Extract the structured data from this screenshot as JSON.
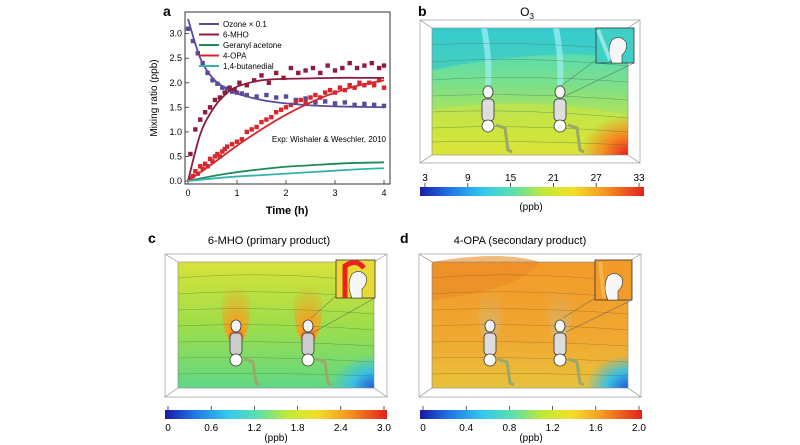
{
  "panel_a": {
    "letter": "a",
    "xlabel": "Time (h)",
    "ylabel": "Mixing ratio (ppb)",
    "annotation": "Exp: Wishaler & Weschler, 2010",
    "legend": [
      {
        "label": "Ozone × 0.1",
        "color": "#5b4a9a"
      },
      {
        "label": "6-MHO",
        "color": "#8c1d3c"
      },
      {
        "label": "Geranyl acetone",
        "color": "#1f8a5a"
      },
      {
        "label": "4-OPA",
        "color": "#d8262c"
      },
      {
        "label": "1,4-butanedial",
        "color": "#36b3b0"
      }
    ]
  },
  "panel_b": {
    "letter": "b",
    "title": "O3",
    "title_main": "O",
    "title_sub": "3",
    "unit": "(ppb)",
    "ticks": [
      "3",
      "9",
      "15",
      "21",
      "27",
      "33"
    ]
  },
  "panel_c": {
    "letter": "c",
    "title": "6-MHO (primary product)",
    "unit": "(ppb)",
    "ticks": [
      "0",
      "0.6",
      "1.2",
      "1.8",
      "2.4",
      "3.0"
    ]
  },
  "panel_d": {
    "letter": "d",
    "title": "4-OPA (secondary product)",
    "unit": "(ppb)",
    "ticks": [
      "0",
      "0.4",
      "0.8",
      "1.2",
      "1.6",
      "2.0"
    ]
  },
  "chart_data": [
    {
      "type": "line",
      "xlabel": "Time (h)",
      "ylabel": "Mixing ratio (ppb)",
      "xlim": [
        0,
        4
      ],
      "ylim": [
        0,
        3.4
      ],
      "xticks": [
        "0",
        "1",
        "2",
        "3",
        "4"
      ],
      "yticks": [
        "0.0",
        "0.5",
        "1.0",
        "1.5",
        "2.0",
        "2.5",
        "3.0"
      ],
      "legend_position": "top-left",
      "series": [
        {
          "name": "Ozone × 0.1",
          "color": "#5b4a9a",
          "x": [
            0,
            0.25,
            0.5,
            0.75,
            1.0,
            1.5,
            2.0,
            2.5,
            3.0,
            3.5,
            4.0
          ],
          "y": [
            3.3,
            2.5,
            2.1,
            1.9,
            1.78,
            1.65,
            1.58,
            1.54,
            1.52,
            1.51,
            1.5
          ]
        },
        {
          "name": "6-MHO",
          "color": "#8c1d3c",
          "x": [
            0,
            0.25,
            0.5,
            0.75,
            1.0,
            1.5,
            2.0,
            2.5,
            3.0,
            3.5,
            4.0
          ],
          "y": [
            0,
            0.95,
            1.45,
            1.75,
            1.92,
            2.05,
            2.08,
            2.09,
            2.1,
            2.1,
            2.1
          ]
        },
        {
          "name": "Geranyl acetone",
          "color": "#1f8a5a",
          "x": [
            0,
            0.5,
            1.0,
            1.5,
            2.0,
            2.5,
            3.0,
            3.5,
            4.0
          ],
          "y": [
            0,
            0.1,
            0.18,
            0.24,
            0.29,
            0.32,
            0.35,
            0.37,
            0.38
          ]
        },
        {
          "name": "4-OPA",
          "color": "#d8262c",
          "x": [
            0,
            0.5,
            1.0,
            1.5,
            2.0,
            2.5,
            3.0,
            3.5,
            4.0
          ],
          "y": [
            0,
            0.35,
            0.72,
            1.05,
            1.35,
            1.6,
            1.8,
            1.95,
            2.05
          ]
        },
        {
          "name": "1,4-butanedial",
          "color": "#36b3b0",
          "x": [
            0,
            0.5,
            1.0,
            1.5,
            2.0,
            2.5,
            3.0,
            3.5,
            4.0
          ],
          "y": [
            0,
            0.05,
            0.09,
            0.12,
            0.15,
            0.18,
            0.21,
            0.24,
            0.26
          ]
        }
      ],
      "markers": [
        {
          "name": "Ozone × 0.1",
          "color": "#5b4a9a",
          "x": [
            0.0,
            0.1,
            0.2,
            0.3,
            0.4,
            0.5,
            0.6,
            0.7,
            0.8,
            0.9,
            1.0,
            1.1,
            1.2,
            1.4,
            1.6,
            1.8,
            2.0,
            2.2,
            2.4,
            2.6,
            2.8,
            3.0,
            3.2,
            3.4,
            3.6,
            3.8,
            4.0
          ],
          "y": [
            3.1,
            2.85,
            2.6,
            2.4,
            2.2,
            2.05,
            1.98,
            1.9,
            1.88,
            1.82,
            1.8,
            1.78,
            1.75,
            1.72,
            1.75,
            1.7,
            1.72,
            1.65,
            1.68,
            1.6,
            1.62,
            1.58,
            1.6,
            1.55,
            1.57,
            1.55,
            1.53
          ]
        },
        {
          "name": "6-MHO",
          "color": "#8c1d3c",
          "x": [
            0.05,
            0.15,
            0.25,
            0.35,
            0.45,
            0.55,
            0.65,
            0.75,
            0.85,
            0.95,
            1.05,
            1.2,
            1.35,
            1.5,
            1.65,
            1.8,
            1.95,
            2.1,
            2.25,
            2.4,
            2.55,
            2.7,
            2.85,
            3.0,
            3.15,
            3.3,
            3.45,
            3.6,
            3.75,
            3.9,
            4.0
          ],
          "y": [
            0.55,
            1.05,
            1.25,
            1.4,
            1.5,
            1.65,
            1.7,
            1.8,
            1.9,
            1.85,
            2.0,
            1.95,
            2.05,
            2.15,
            2.0,
            2.2,
            2.1,
            2.3,
            2.2,
            2.25,
            2.3,
            2.2,
            2.35,
            2.25,
            2.3,
            2.4,
            2.3,
            2.35,
            2.4,
            2.3,
            2.35
          ]
        },
        {
          "name": "4-OPA",
          "color": "#d8262c",
          "x": [
            0.05,
            0.1,
            0.15,
            0.2,
            0.25,
            0.3,
            0.35,
            0.4,
            0.45,
            0.5,
            0.55,
            0.6,
            0.65,
            0.7,
            0.75,
            0.8,
            0.9,
            1.0,
            1.1,
            1.2,
            1.3,
            1.4,
            1.5,
            1.6,
            1.7,
            1.8,
            1.9,
            2.0,
            2.1,
            2.2,
            2.3,
            2.4,
            2.5,
            2.6,
            2.7,
            2.8,
            2.9,
            3.0,
            3.1,
            3.2,
            3.3,
            3.4,
            3.5,
            3.6,
            3.7,
            3.8,
            3.9,
            4.0
          ],
          "y": [
            0.05,
            0.1,
            0.2,
            0.15,
            0.3,
            0.25,
            0.35,
            0.3,
            0.45,
            0.4,
            0.5,
            0.55,
            0.5,
            0.6,
            0.65,
            0.7,
            0.75,
            0.8,
            0.85,
            1.0,
            1.05,
            1.1,
            1.2,
            1.25,
            1.3,
            1.4,
            1.45,
            1.5,
            1.55,
            1.6,
            1.65,
            1.6,
            1.7,
            1.75,
            1.7,
            1.8,
            1.85,
            1.8,
            1.9,
            1.85,
            1.95,
            1.9,
            2.0,
            1.95,
            2.0,
            1.95,
            2.05,
            1.9
          ]
        }
      ]
    },
    {
      "type": "heatmap",
      "title": "O3",
      "colorbar_range": [
        3,
        33
      ],
      "unit": "(ppb)"
    },
    {
      "type": "heatmap",
      "title": "6-MHO (primary product)",
      "colorbar_range": [
        0,
        3.0
      ],
      "unit": "(ppb)"
    },
    {
      "type": "heatmap",
      "title": "4-OPA (secondary product)",
      "colorbar_range": [
        0,
        2.0
      ],
      "unit": "(ppb)"
    }
  ]
}
